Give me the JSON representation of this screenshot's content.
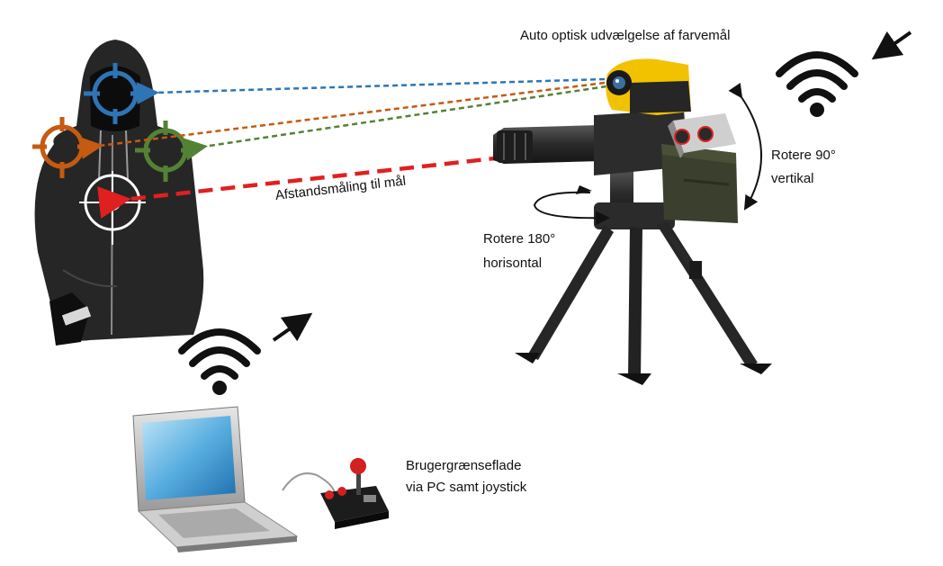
{
  "labels": {
    "auto_optical": "Auto optisk udvælgelse af farvemål",
    "rotate_vertical_1": "Rotere 90°",
    "rotate_vertical_2": "vertikal",
    "rotate_horizontal_1": "Rotere 180°",
    "rotate_horizontal_2": "horisontal",
    "distance": "Afstandsmåling til mål",
    "ui_1": "Brugergrænseflade",
    "ui_2": "via PC samt joystick"
  },
  "colors": {
    "blue_target": "#2e75b6",
    "orange_target": "#c55a11",
    "green_target": "#548235",
    "distance_line": "#e02020",
    "camera_yellow": "#f2c200",
    "hoodie": "#262626",
    "wifi": "#111111"
  },
  "icons": [
    "wifi-icon-top-right",
    "wifi-icon-laptop",
    "arrow-icon",
    "laptop-icon",
    "joystick-icon",
    "camera-icon",
    "turret-icon",
    "tripod-icon",
    "hoodie-figure",
    "crosshair-icon"
  ]
}
